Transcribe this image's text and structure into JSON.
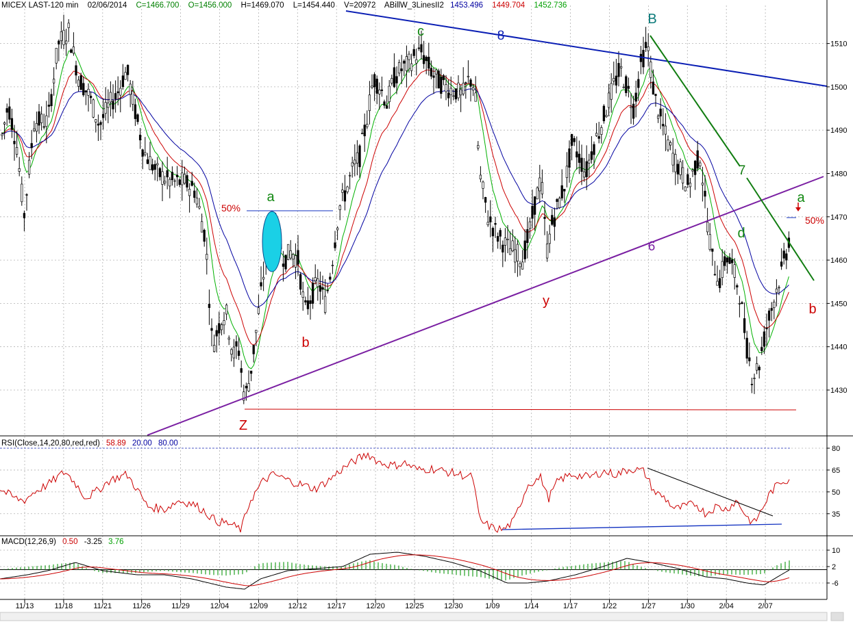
{
  "header": {
    "symbol": "MICEX LAST-120 min",
    "date": "02/06/2014",
    "close": "C=1466.700",
    "open": "O=1456.000",
    "high": "H=1469.070",
    "low": "L=1454.440",
    "volume": "V=20972",
    "indicator_name": "ABillW_3LinesII2",
    "line1_value": "1453.496",
    "line2_value": "1449.704",
    "line3_value": "1452.736"
  },
  "rsi_header": {
    "label": "RSI(Close,14,20,80,red,red)",
    "value": "58.89",
    "low": "20.00",
    "high": "80.00"
  },
  "macd_header": {
    "label": "MACD(12,26,9)",
    "macd": "0.50",
    "signal": "-3.25",
    "hist": "3.76"
  },
  "colors": {
    "price": "#000000",
    "line_blue": "#0000a0",
    "line_red": "#cc0000",
    "line_green": "#00b000",
    "trend_blue": "#0a1eb4",
    "trend_purple": "#7a1fa2",
    "trend_green": "#117d11",
    "highlight": "#1ad0e6"
  },
  "annotations": {
    "wave_labels": [
      "a",
      "b",
      "c",
      "B",
      "y",
      "Z",
      "d",
      "a",
      "b"
    ],
    "line_numbers": [
      "8",
      "7",
      "6"
    ],
    "fib_left": "50%",
    "fib_right": "50%"
  },
  "chart_data": [
    {
      "type": "candlestick",
      "title": "MICEX LAST-120 min",
      "x_ticks": [
        "11/13",
        "11/18",
        "11/21",
        "11/26",
        "11/29",
        "12/04",
        "12/09",
        "12/12",
        "12/17",
        "12/20",
        "12/25",
        "12/30",
        "1/09",
        "1/14",
        "1/17",
        "1/22",
        "1/27",
        "1/30",
        "2/04",
        "2/07"
      ],
      "y_ticks": [
        1430,
        1440,
        1450,
        1460,
        1470,
        1480,
        1490,
        1500,
        1510
      ],
      "ylim": [
        1420,
        1520
      ],
      "grid": true,
      "key_levels": {
        "low_Z": 1427,
        "high_B": 1511,
        "high_c": 1510,
        "low_y": 1455,
        "recent_low": 1427,
        "last_close": 1466.7
      },
      "series": [
        {
          "name": "price",
          "close": 1466.7
        },
        {
          "name": "ABillW_3LinesII2 line 1",
          "last": 1453.496
        },
        {
          "name": "ABillW_3LinesII2 line 2",
          "last": 1449.704
        },
        {
          "name": "ABillW_3LinesII2 line 3",
          "last": 1452.736
        }
      ]
    },
    {
      "type": "line",
      "title": "RSI(Close,14,20,80,red,red)",
      "y_ticks": [
        35,
        50,
        65,
        80
      ],
      "ylim": [
        20,
        80
      ],
      "levels": [
        20,
        80
      ],
      "last": 58.89
    },
    {
      "type": "line",
      "title": "MACD(12,26,9)",
      "y_ticks": [
        -6,
        2,
        10
      ],
      "values": {
        "macd": 0.5,
        "signal": -3.25,
        "histogram": 3.76
      }
    }
  ]
}
